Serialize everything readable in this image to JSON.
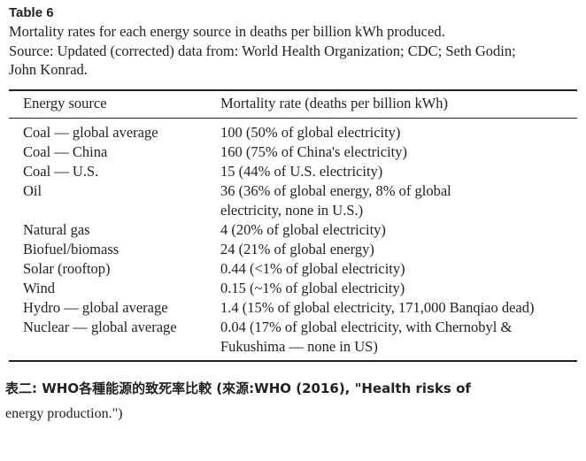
{
  "header": {
    "title": "Table 6",
    "caption_lines": [
      "Mortality rates for each energy source in deaths per billion kWh produced.",
      "Source: Updated (corrected) data from: World Health Organization; CDC; Seth Godin;",
      "John Konrad."
    ]
  },
  "table": {
    "columns": [
      "Energy source",
      "Mortality rate (deaths per billion kWh)"
    ],
    "rows": [
      [
        "Coal — global average",
        [
          "100 (50% of global electricity)"
        ]
      ],
      [
        "Coal — China",
        [
          "160 (75% of China's electricity)"
        ]
      ],
      [
        "Coal — U.S.",
        [
          "15 (44% of U.S. electricity)"
        ]
      ],
      [
        "Oil",
        [
          "36 (36% of global energy, 8% of global",
          "electricity, none in U.S.)"
        ]
      ],
      [
        "Natural gas",
        [
          "4 (20% of global electricity)"
        ]
      ],
      [
        "Biofuel/biomass",
        [
          "24 (21% of global energy)"
        ]
      ],
      [
        "Solar (rooftop)",
        [
          "0.44 (<1% of global electricity)"
        ]
      ],
      [
        "Wind",
        [
          "0.15 (~1% of global electricity)"
        ]
      ],
      [
        "Hydro — global average",
        [
          "1.4 (15% of global electricity, 171,000 Banqiao dead)"
        ]
      ],
      [
        "Nuclear — global average",
        [
          "0.04 (17% of global electricity, with Chernobyl &",
          "Fukushima — none in US)"
        ]
      ]
    ]
  },
  "footer": {
    "lines": [
      "表二: WHO各種能源的致死率比較 (來源:WHO (2016), \"Health risks of",
      "energy production.\")"
    ]
  }
}
